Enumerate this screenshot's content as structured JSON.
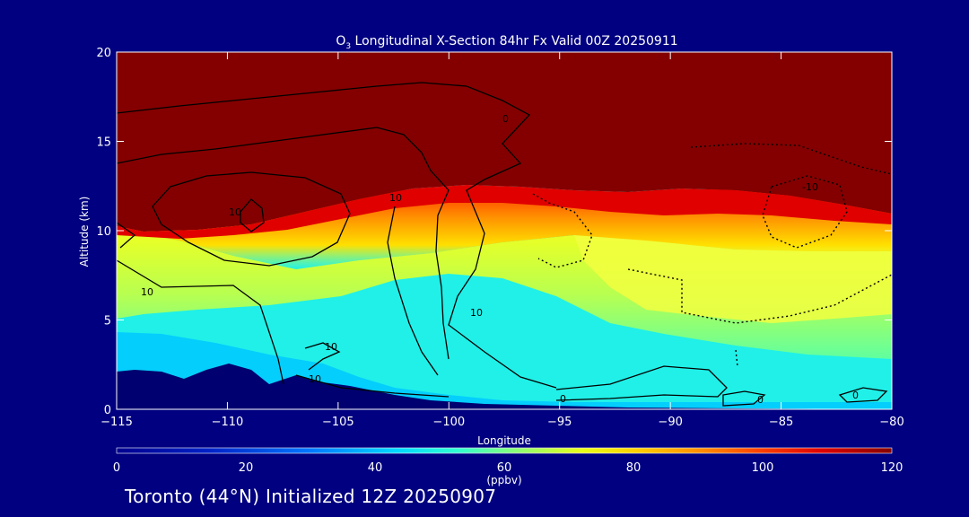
{
  "chart_data": {
    "type": "heatmap",
    "title_prefix": "O",
    "title_subscript": "3",
    "title_suffix": " Longitudinal X-Section 84hr  Fx Valid 00Z 20250911",
    "xlabel": "Longitude",
    "ylabel": "Altitude (km)",
    "xlim": [
      -115,
      -80
    ],
    "ylim": [
      0,
      20
    ],
    "x_ticks": [
      {
        "value": -115,
        "label": "−115"
      },
      {
        "value": -110,
        "label": "−110"
      },
      {
        "value": -105,
        "label": "−105"
      },
      {
        "value": -100,
        "label": "−100"
      },
      {
        "value": -95,
        "label": "−95"
      },
      {
        "value": -90,
        "label": "−90"
      },
      {
        "value": -85,
        "label": "−85"
      },
      {
        "value": -80,
        "label": "−80"
      }
    ],
    "y_ticks": [
      {
        "value": 0,
        "label": "0"
      },
      {
        "value": 5,
        "label": "5"
      },
      {
        "value": 10,
        "label": "10"
      },
      {
        "value": 15,
        "label": "15"
      },
      {
        "value": 20,
        "label": "20"
      }
    ],
    "colorbar": {
      "min": 0,
      "max": 120,
      "ticks": [
        "0",
        "20",
        "40",
        "60",
        "80",
        "100",
        "120"
      ],
      "unit": "(ppbv)"
    },
    "tropopause_km": {
      "lon": [
        -115,
        -113,
        -111,
        -109,
        -107,
        -105,
        -103,
        -101,
        -99,
        -97,
        -95,
        -93,
        -91,
        -89,
        -87,
        -85,
        -83,
        -81,
        -80
      ],
      "alt": [
        9.8,
        9.9,
        10.1,
        10.5,
        10.9,
        11.2,
        11.5,
        11.7,
        11.8,
        11.8,
        11.6,
        11.4,
        11.5,
        11.8,
        11.8,
        11.6,
        11.3,
        11.0,
        10.9
      ]
    },
    "contour_labels": [
      "10",
      "10",
      "10",
      "10",
      "10",
      "10",
      "0",
      "0",
      "0",
      "0",
      "-10"
    ]
  },
  "footer": "Toronto (44°N) Initialized 12Z 20250907"
}
